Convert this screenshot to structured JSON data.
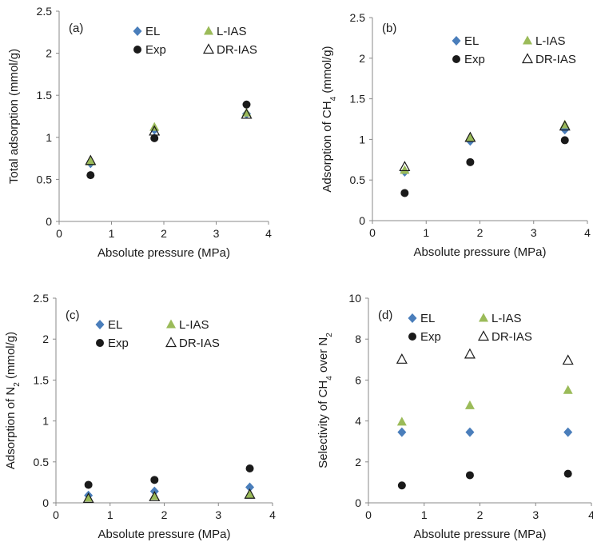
{
  "colors": {
    "EL": "#4a7ebb",
    "L-IAS": "#9bbb59",
    "Exp": "#1a1a1a",
    "DR-IAS": "#1a1a1a",
    "axis": "#888888"
  },
  "chart_data": [
    {
      "type": "scatter",
      "panel_label": "(a)",
      "xlabel": "Absolute pressure (MPa)",
      "ylabel": "Total adsorption (mmol/g)",
      "xlim": [
        0,
        4
      ],
      "ylim": [
        0,
        2.5
      ],
      "xticks": [
        "0",
        "1",
        "2",
        "3",
        "4"
      ],
      "yticks": [
        "0",
        "0.5",
        "1",
        "1.5",
        "2",
        "2.5"
      ],
      "grid": false,
      "legend": "top-right",
      "series": [
        {
          "name": "EL",
          "marker": "diamond",
          "x": [
            0.6,
            1.82,
            3.58
          ],
          "y": [
            0.69,
            1.09,
            1.28
          ]
        },
        {
          "name": "L-IAS",
          "marker": "triangle-filled",
          "x": [
            0.6,
            1.82,
            3.58
          ],
          "y": [
            0.71,
            1.12,
            1.29
          ]
        },
        {
          "name": "Exp",
          "marker": "circle",
          "x": [
            0.6,
            1.82,
            3.58
          ],
          "y": [
            0.55,
            0.99,
            1.39
          ]
        },
        {
          "name": "DR-IAS",
          "marker": "triangle-open",
          "x": [
            0.6,
            1.82,
            3.58
          ],
          "y": [
            0.72,
            1.07,
            1.27
          ]
        }
      ]
    },
    {
      "type": "scatter",
      "panel_label": "(b)",
      "xlabel": "Absolute pressure (MPa)",
      "ylabel": "Adsorption of CH",
      "ylabel_sub": "4",
      "ylabel_suffix": " (mmol/g)",
      "xlim": [
        0,
        4
      ],
      "ylim": [
        0,
        2.5
      ],
      "xticks": [
        "0",
        "1",
        "2",
        "3",
        "4"
      ],
      "yticks": [
        "0",
        "0.5",
        "1",
        "1.5",
        "2",
        "2.5"
      ],
      "grid": false,
      "legend": "top-right",
      "series": [
        {
          "name": "EL",
          "marker": "diamond",
          "x": [
            0.6,
            1.82,
            3.58
          ],
          "y": [
            0.6,
            0.98,
            1.12
          ]
        },
        {
          "name": "L-IAS",
          "marker": "triangle-filled",
          "x": [
            0.6,
            1.82,
            3.58
          ],
          "y": [
            0.62,
            1.02,
            1.18
          ]
        },
        {
          "name": "Exp",
          "marker": "circle",
          "x": [
            0.6,
            1.82,
            3.58
          ],
          "y": [
            0.34,
            0.72,
            0.99
          ]
        },
        {
          "name": "DR-IAS",
          "marker": "triangle-open",
          "x": [
            0.6,
            1.82,
            3.58
          ],
          "y": [
            0.66,
            1.02,
            1.16
          ]
        }
      ]
    },
    {
      "type": "scatter",
      "panel_label": "(c)",
      "xlabel": "Absolute pressure (MPa)",
      "ylabel": "Adsorption of N",
      "ylabel_sub": "2",
      "ylabel_suffix": " (mmol/g)",
      "xlim": [
        0,
        4
      ],
      "ylim": [
        0,
        2.5
      ],
      "xticks": [
        "0",
        "1",
        "2",
        "3",
        "4"
      ],
      "yticks": [
        "0",
        "0.5",
        "1",
        "1.5",
        "2",
        "2.5"
      ],
      "grid": false,
      "legend": "top-right",
      "series": [
        {
          "name": "EL",
          "marker": "diamond",
          "x": [
            0.6,
            1.82,
            3.58
          ],
          "y": [
            0.09,
            0.14,
            0.19
          ]
        },
        {
          "name": "L-IAS",
          "marker": "triangle-filled",
          "x": [
            0.6,
            1.82,
            3.58
          ],
          "y": [
            0.06,
            0.08,
            0.1
          ]
        },
        {
          "name": "Exp",
          "marker": "circle",
          "x": [
            0.6,
            1.82,
            3.58
          ],
          "y": [
            0.22,
            0.28,
            0.42
          ]
        },
        {
          "name": "DR-IAS",
          "marker": "triangle-open",
          "x": [
            0.6,
            1.82,
            3.58
          ],
          "y": [
            0.05,
            0.07,
            0.1
          ]
        }
      ]
    },
    {
      "type": "scatter",
      "panel_label": "(d)",
      "xlabel": "Absolute pressure (MPa)",
      "ylabel": "Selectivity of CH",
      "ylabel_sub": "4",
      "ylabel_suffix": " over N",
      "ylabel_sub2": "2",
      "xlim": [
        0,
        4
      ],
      "ylim": [
        0,
        10
      ],
      "xticks": [
        "0",
        "1",
        "2",
        "3",
        "4"
      ],
      "yticks": [
        "0",
        "2",
        "4",
        "6",
        "8",
        "10"
      ],
      "grid": false,
      "legend": "top-right",
      "series": [
        {
          "name": "EL",
          "marker": "diamond",
          "x": [
            0.6,
            1.82,
            3.58
          ],
          "y": [
            3.45,
            3.45,
            3.45
          ]
        },
        {
          "name": "L-IAS",
          "marker": "triangle-filled",
          "x": [
            0.6,
            1.82,
            3.58
          ],
          "y": [
            3.95,
            4.75,
            5.5
          ]
        },
        {
          "name": "Exp",
          "marker": "circle",
          "x": [
            0.6,
            1.82,
            3.58
          ],
          "y": [
            0.85,
            1.35,
            1.42
          ]
        },
        {
          "name": "DR-IAS",
          "marker": "triangle-open",
          "x": [
            0.6,
            1.82,
            3.58
          ],
          "y": [
            7.0,
            7.25,
            6.95
          ]
        }
      ]
    }
  ]
}
